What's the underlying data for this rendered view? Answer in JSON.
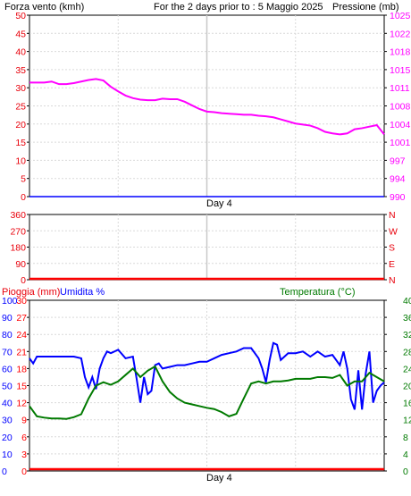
{
  "colors": {
    "wind": "#e8000b",
    "pressure": "#ff00ff",
    "humidity": "#0000ff",
    "temperature": "#007a00",
    "rain": "#ff0000",
    "grid": "#d9d9d9",
    "day_marker": "#c8c8c8",
    "frame": "#000000"
  },
  "chart_data": [
    {
      "type": "line",
      "title": "For the 2 days prior to : 5 Maggio 2025",
      "left_axis_label": "Forza vento (kmh)",
      "right_axis_label": "Pressione (mb)",
      "xlabel": "Day 4",
      "x_range": [
        0,
        48
      ],
      "day_marker_x": 24,
      "left_ticks": [
        "0",
        "5",
        "10",
        "15",
        "20",
        "25",
        "30",
        "35",
        "40",
        "45",
        "50"
      ],
      "right_ticks": [
        "990",
        "994",
        "997",
        "1001",
        "1004",
        "1008",
        "1011",
        "1015",
        "1018",
        "1022",
        "1025"
      ],
      "ylim_left": [
        0,
        50
      ],
      "ylim_right": [
        990,
        1025
      ],
      "series": [
        {
          "name": "Pressione (mb)",
          "axis": "right",
          "x": [
            0,
            2,
            3,
            4,
            5,
            6,
            7,
            8,
            9,
            10,
            11,
            12,
            13,
            14,
            15,
            16,
            17,
            18,
            19,
            20,
            21,
            22,
            23,
            24,
            25,
            26,
            27,
            28,
            29,
            30,
            31,
            32,
            33,
            34,
            35,
            36,
            37,
            38,
            39,
            40,
            41,
            42,
            43,
            44,
            45,
            46,
            47,
            48
          ],
          "values": [
            1012.0,
            1012.0,
            1012.2,
            1011.7,
            1011.7,
            1011.9,
            1012.2,
            1012.5,
            1012.7,
            1012.4,
            1011.2,
            1010.3,
            1009.5,
            1009.0,
            1008.7,
            1008.6,
            1008.6,
            1008.9,
            1008.8,
            1008.8,
            1008.3,
            1007.6,
            1006.9,
            1006.4,
            1006.3,
            1006.1,
            1006.0,
            1005.9,
            1005.8,
            1005.8,
            1005.6,
            1005.5,
            1005.3,
            1004.9,
            1004.5,
            1004.1,
            1003.9,
            1003.7,
            1003.2,
            1002.5,
            1002.2,
            1002.0,
            1002.2,
            1003.0,
            1003.2,
            1003.5,
            1003.8,
            1002.0
          ]
        },
        {
          "name": "Forza vento (kmh)",
          "axis": "left",
          "x": [
            0,
            48
          ],
          "values": [
            0,
            0
          ]
        }
      ]
    },
    {
      "type": "line",
      "axis_label_right": "N W S E N",
      "direction_letters": [
        "N",
        "W",
        "S",
        "E",
        "N"
      ],
      "xlabel": "",
      "x_range": [
        0,
        48
      ],
      "day_marker_x": 24,
      "left_ticks": [
        "360",
        "270",
        "180",
        "90",
        "0"
      ],
      "ylim": [
        0,
        360
      ],
      "series": [
        {
          "name": "Wind direction",
          "x": [
            0,
            48
          ],
          "values": [
            0,
            0
          ]
        }
      ]
    },
    {
      "type": "line",
      "rain_label": "Pioggia (mm)",
      "humidity_label": "Umidita %",
      "temperature_label": "Temperatura (°C)",
      "xlabel": "Day 4",
      "x_range": [
        0,
        48
      ],
      "humidity_ticks": [
        "0",
        "10",
        "20",
        "30",
        "40",
        "50",
        "60",
        "70",
        "80",
        "90",
        "100"
      ],
      "rain_ticks": [
        "0",
        "3",
        "6",
        "9",
        "12",
        "15",
        "18",
        "21",
        "24",
        "27",
        "30"
      ],
      "temperature_ticks": [
        "0",
        "4",
        "8",
        "12",
        "16",
        "20",
        "24",
        "28",
        "32",
        "36",
        "40"
      ],
      "ylim_humidity": [
        0,
        100
      ],
      "ylim_rain": [
        0,
        30
      ],
      "ylim_temperature": [
        0,
        40
      ],
      "series": [
        {
          "name": "Umidita %",
          "axis": "humidity",
          "x": [
            0,
            0.5,
            1,
            2,
            3,
            4,
            5,
            6,
            7,
            7.5,
            8,
            8.5,
            9,
            9.5,
            10,
            10.5,
            11,
            12,
            13,
            14,
            14.5,
            15,
            15.5,
            16,
            16.5,
            17,
            17.5,
            18,
            19,
            20,
            21,
            22,
            23,
            24,
            25,
            26,
            27,
            28,
            29,
            30,
            31,
            31.5,
            32,
            32.5,
            33,
            33.5,
            34,
            35,
            36,
            37,
            38,
            39,
            40,
            41,
            42,
            42.5,
            43,
            43.5,
            44,
            44.5,
            45,
            45.5,
            46,
            46.5,
            47,
            47.5,
            48
          ],
          "values": [
            66,
            63,
            67,
            67,
            67,
            67,
            67,
            67,
            66,
            55,
            49,
            55,
            48,
            60,
            66,
            70,
            69,
            71,
            66,
            67,
            54,
            40,
            55,
            45,
            47,
            62,
            63,
            60,
            61,
            62,
            62,
            63,
            64,
            64,
            66,
            68,
            69,
            70,
            72,
            72,
            66,
            60,
            52,
            65,
            75,
            74,
            65,
            69,
            69,
            70,
            67,
            70,
            67,
            68,
            62,
            70,
            60,
            42,
            36,
            59,
            36,
            57,
            70,
            40,
            47,
            50,
            52
          ]
        },
        {
          "name": "Temperatura (°C)",
          "axis": "temperature",
          "x": [
            0,
            1,
            2,
            3,
            4,
            5,
            6,
            7,
            8,
            9,
            10,
            11,
            12,
            13,
            14,
            15,
            16,
            17,
            18,
            19,
            20,
            21,
            22,
            23,
            24,
            25,
            26,
            27,
            28,
            29,
            30,
            31,
            32,
            33,
            34,
            35,
            36,
            37,
            38,
            39,
            40,
            41,
            42,
            43,
            44,
            45,
            46,
            47,
            48
          ],
          "values": [
            15.2,
            12.8,
            12.5,
            12.3,
            12.3,
            12.2,
            12.6,
            13.3,
            17.0,
            20.0,
            20.8,
            20.2,
            21.0,
            22.5,
            24.0,
            22.0,
            23.5,
            24.5,
            21.0,
            18.5,
            17.0,
            16.0,
            15.6,
            15.2,
            14.8,
            14.5,
            13.8,
            12.8,
            13.4,
            17.0,
            20.5,
            21.0,
            20.5,
            21.0,
            21.0,
            21.2,
            21.6,
            21.6,
            21.6,
            22.0,
            22.0,
            21.8,
            22.5,
            20.0,
            21.0,
            21.0,
            23.0,
            22.0,
            21.0
          ]
        },
        {
          "name": "Pioggia (mm)",
          "axis": "rain",
          "x": [
            0,
            48
          ],
          "values": [
            0,
            0
          ]
        }
      ]
    }
  ]
}
